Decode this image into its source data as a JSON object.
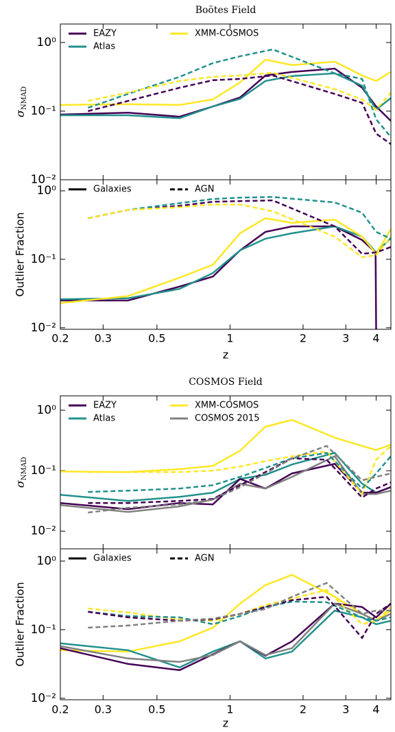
{
  "chart_data": [
    {
      "type": "line",
      "title": "Boötes Field",
      "ylabel": "σ",
      "ylabel_sub": "NMAD",
      "xscale": "log",
      "yscale": "log",
      "xlim": [
        0.2,
        4.6
      ],
      "ylim": [
        0.01,
        1.86
      ],
      "xticks": [
        0.2,
        0.3,
        0.5,
        1,
        2,
        3,
        4
      ],
      "xticklabels": false,
      "yticks": [
        {
          "value": 1,
          "label": "10⁰"
        },
        {
          "value": 0.1,
          "label": "10⁻¹"
        },
        {
          "value": 0.01,
          "label": "10⁻²"
        }
      ],
      "legend": {
        "loc": "upper left",
        "ncol": 2,
        "entries": [
          {
            "label": "EAZY",
            "color": "#440154",
            "linestyle": "solid"
          },
          {
            "label": "Atlas",
            "color": "#21918c",
            "linestyle": "solid"
          },
          {
            "label": "XMM-COSMOS",
            "color": "#fde725",
            "linestyle": "solid"
          }
        ]
      },
      "series": [
        {
          "color": "#440154",
          "linestyle": "solid",
          "x": [
            0.2,
            0.38,
            0.62,
            0.85,
            1.1,
            1.4,
            1.8,
            2.7,
            3.5,
            4.0,
            4.6
          ],
          "values": [
            0.089,
            0.095,
            0.083,
            0.117,
            0.158,
            0.331,
            0.372,
            0.417,
            0.219,
            0.117,
            0.072
          ]
        },
        {
          "color": "#21918c",
          "linestyle": "solid",
          "x": [
            0.2,
            0.38,
            0.62,
            0.85,
            1.1,
            1.4,
            1.8,
            2.7,
            3.5,
            4.0,
            4.6
          ],
          "values": [
            0.087,
            0.087,
            0.079,
            0.117,
            0.151,
            0.275,
            0.324,
            0.355,
            0.234,
            0.105,
            0.155
          ]
        },
        {
          "color": "#fde725",
          "linestyle": "solid",
          "x": [
            0.2,
            0.38,
            0.62,
            0.85,
            1.1,
            1.4,
            1.8,
            2.7,
            3.5,
            4.0,
            4.6
          ],
          "values": [
            0.123,
            0.126,
            0.123,
            0.148,
            0.263,
            0.562,
            0.468,
            0.525,
            0.331,
            0.275,
            0.372
          ]
        },
        {
          "color": "#440154",
          "linestyle": "dashed",
          "x": [
            0.26,
            0.38,
            0.62,
            0.85,
            1.1,
            1.5,
            2.7,
            3.5,
            4.0,
            4.6
          ],
          "values": [
            0.1,
            0.141,
            0.219,
            0.282,
            0.295,
            0.331,
            0.178,
            0.132,
            0.047,
            0.033
          ]
        },
        {
          "color": "#21918c",
          "linestyle": "dashed",
          "x": [
            0.26,
            0.38,
            0.62,
            0.85,
            1.1,
            1.5,
            2.7,
            3.5,
            4.0,
            4.6
          ],
          "values": [
            0.112,
            0.178,
            0.316,
            0.501,
            0.631,
            0.794,
            0.355,
            0.295,
            0.076,
            0.042
          ]
        },
        {
          "color": "#fde725",
          "linestyle": "dashed",
          "x": [
            0.26,
            0.38,
            0.62,
            0.85,
            1.1,
            1.5,
            2.7,
            3.5,
            4.0,
            4.6
          ],
          "values": [
            0.141,
            0.186,
            0.275,
            0.316,
            0.331,
            0.363,
            0.209,
            0.148,
            0.105,
            0.186
          ]
        }
      ]
    },
    {
      "type": "line",
      "ylabel": "Outlier Fraction",
      "xlabel": "z",
      "xscale": "log",
      "yscale": "log",
      "xlim": [
        0.2,
        4.6
      ],
      "ylim": [
        0.0095,
        1.45
      ],
      "xticks": [
        0.2,
        0.3,
        0.5,
        1,
        2,
        3,
        4
      ],
      "xticklabels": true,
      "yticks": [
        {
          "value": 1,
          "label": "10⁰"
        },
        {
          "value": 0.1,
          "label": "10⁻¹"
        },
        {
          "value": 0.01,
          "label": "10⁻²"
        }
      ],
      "legend": {
        "loc": "upper left",
        "ncol": 2,
        "entries": [
          {
            "label": "Galaxies",
            "color": "#000000",
            "linestyle": "solid"
          },
          {
            "label": "AGN",
            "color": "#000000",
            "linestyle": "dashed"
          }
        ]
      },
      "series": [
        {
          "color": "#440154",
          "linestyle": "solid",
          "x": [
            0.2,
            0.38,
            0.62,
            0.85,
            1.1,
            1.4,
            1.8,
            2.7,
            3.5,
            3.98,
            4.0
          ],
          "values": [
            0.025,
            0.025,
            0.04,
            0.056,
            0.135,
            0.251,
            0.302,
            0.302,
            0.191,
            0.126,
            0.0095
          ]
        },
        {
          "color": "#21918c",
          "linestyle": "solid",
          "x": [
            0.2,
            0.38,
            0.62,
            0.85,
            1.1,
            1.4,
            1.8,
            2.7,
            3.5,
            4.0,
            4.6
          ],
          "values": [
            0.026,
            0.027,
            0.037,
            0.063,
            0.135,
            0.2,
            0.24,
            0.302,
            0.214,
            0.126,
            0.204
          ]
        },
        {
          "color": "#fde725",
          "linestyle": "solid",
          "x": [
            0.2,
            0.38,
            0.62,
            0.85,
            1.1,
            1.4,
            1.8,
            2.7,
            3.5,
            4.0,
            4.6
          ],
          "values": [
            0.023,
            0.029,
            0.054,
            0.083,
            0.24,
            0.398,
            0.339,
            0.38,
            0.214,
            0.12,
            0.275
          ]
        },
        {
          "color": "#440154",
          "linestyle": "dashed",
          "x": [
            0.26,
            0.38,
            0.62,
            0.85,
            1.1,
            1.5,
            2.7,
            3.5,
            4.0,
            4.6
          ],
          "values": [
            0.398,
            0.525,
            0.603,
            0.692,
            0.708,
            0.724,
            0.302,
            0.12,
            0.126,
            0.151
          ]
        },
        {
          "color": "#21918c",
          "linestyle": "dashed",
          "x": [
            0.26,
            0.38,
            0.62,
            0.85,
            1.1,
            1.5,
            2.7,
            3.5,
            4.0,
            4.6
          ],
          "values": [
            0.398,
            0.525,
            0.661,
            0.759,
            0.794,
            0.813,
            0.676,
            0.479,
            0.251,
            0.2
          ]
        },
        {
          "color": "#fde725",
          "linestyle": "dashed",
          "x": [
            0.26,
            0.38,
            0.62,
            0.85,
            1.1,
            1.5,
            2.7,
            3.5,
            4.0,
            4.6
          ],
          "values": [
            0.398,
            0.525,
            0.575,
            0.631,
            0.631,
            0.501,
            0.214,
            0.107,
            0.115,
            0.214
          ]
        }
      ]
    },
    {
      "type": "line",
      "title": "COSMOS Field",
      "ylabel": "σ",
      "ylabel_sub": "NMAD",
      "xscale": "log",
      "yscale": "log",
      "xlim": [
        0.2,
        4.6
      ],
      "ylim": [
        0.0051,
        1.73
      ],
      "xticks": [
        0.2,
        0.3,
        0.5,
        1,
        2,
        3,
        4
      ],
      "xticklabels": false,
      "yticks": [
        {
          "value": 1,
          "label": "10⁰"
        },
        {
          "value": 0.1,
          "label": "10⁻¹"
        },
        {
          "value": 0.01,
          "label": "10⁻²"
        }
      ],
      "legend": {
        "loc": "upper left",
        "ncol": 2,
        "entries": [
          {
            "label": "EAZY",
            "color": "#440154",
            "linestyle": "solid"
          },
          {
            "label": "Atlas",
            "color": "#21918c",
            "linestyle": "solid"
          },
          {
            "label": "XMM-COSMOS",
            "color": "#fde725",
            "linestyle": "solid"
          },
          {
            "label": "COSMOS 2015",
            "color": "#808080",
            "linestyle": "solid"
          }
        ]
      },
      "series": [
        {
          "color": "#fde725",
          "linestyle": "solid",
          "x": [
            0.2,
            0.38,
            0.62,
            0.85,
            1.1,
            1.4,
            1.8,
            2.7,
            3.5,
            4.0,
            4.6
          ],
          "values": [
            0.097,
            0.095,
            0.106,
            0.12,
            0.214,
            0.534,
            0.693,
            0.351,
            0.257,
            0.219,
            0.27
          ]
        },
        {
          "color": "#21918c",
          "linestyle": "solid",
          "x": [
            0.2,
            0.38,
            0.62,
            0.85,
            1.1,
            1.4,
            1.8,
            2.7,
            3.5,
            4.0,
            4.6
          ],
          "values": [
            0.04,
            0.0316,
            0.037,
            0.0433,
            0.073,
            0.0855,
            0.1265,
            0.197,
            0.0608,
            0.0433,
            0.0534
          ]
        },
        {
          "color": "#440154",
          "linestyle": "solid",
          "x": [
            0.2,
            0.38,
            0.62,
            0.85,
            1.1,
            1.4,
            1.8,
            2.7,
            3.5,
            4.0,
            4.6
          ],
          "values": [
            0.0292,
            0.0231,
            0.0292,
            0.0277,
            0.073,
            0.0507,
            0.0901,
            0.13,
            0.0433,
            0.0433,
            0.0534
          ]
        },
        {
          "color": "#808080",
          "linestyle": "solid",
          "x": [
            0.2,
            0.38,
            0.62,
            0.85,
            1.1,
            1.4,
            1.8,
            2.7,
            3.5,
            4.0,
            4.6
          ],
          "values": [
            0.027,
            0.0208,
            0.0257,
            0.0333,
            0.0608,
            0.0507,
            0.0791,
            0.173,
            0.0411,
            0.0411,
            0.0468
          ]
        },
        {
          "color": "#fde725",
          "linestyle": "dashed",
          "x": [
            0.26,
            0.38,
            0.62,
            0.85,
            1.1,
            1.4,
            1.8,
            2.5,
            3.5,
            4.0,
            4.6
          ],
          "values": [
            0.095,
            0.095,
            0.095,
            0.1,
            0.117,
            0.144,
            0.173,
            0.208,
            0.0411,
            0.152,
            0.257
          ]
        },
        {
          "color": "#21918c",
          "linestyle": "dashed",
          "x": [
            0.26,
            0.38,
            0.62,
            0.85,
            1.1,
            1.4,
            1.8,
            2.5,
            3.5,
            4.0,
            4.6
          ],
          "values": [
            0.0445,
            0.0468,
            0.0507,
            0.0577,
            0.0791,
            0.111,
            0.16,
            0.197,
            0.0507,
            0.0901,
            0.173
          ]
        },
        {
          "color": "#440154",
          "linestyle": "dashed",
          "x": [
            0.26,
            0.38,
            0.62,
            0.85,
            1.1,
            1.4,
            1.8,
            2.5,
            3.5,
            4.0,
            4.6
          ],
          "values": [
            0.0292,
            0.0292,
            0.0316,
            0.0342,
            0.0577,
            0.095,
            0.16,
            0.152,
            0.036,
            0.0507,
            0.0641
          ]
        },
        {
          "color": "#808080",
          "linestyle": "dashed",
          "x": [
            0.26,
            0.38,
            0.62,
            0.85,
            1.1,
            1.4,
            1.8,
            2.5,
            3.5,
            4.0,
            4.6
          ],
          "values": [
            0.0203,
            0.0243,
            0.0277,
            0.0333,
            0.0534,
            0.0901,
            0.16,
            0.257,
            0.0693,
            0.0791,
            0.0901
          ]
        }
      ]
    },
    {
      "type": "line",
      "ylabel": "Outlier Fraction",
      "xlabel": "z",
      "xscale": "log",
      "yscale": "log",
      "xlim": [
        0.2,
        4.6
      ],
      "ylim": [
        0.0095,
        1.51
      ],
      "xticks": [
        0.2,
        0.3,
        0.5,
        1,
        2,
        3,
        4
      ],
      "xticklabels": true,
      "yticks": [
        {
          "value": 1,
          "label": "10⁰"
        },
        {
          "value": 0.1,
          "label": "10⁻¹"
        },
        {
          "value": 0.01,
          "label": "10⁻²"
        }
      ],
      "legend": {
        "loc": "upper left",
        "ncol": 2,
        "entries": [
          {
            "label": "Galaxies",
            "color": "#000000",
            "linestyle": "solid"
          },
          {
            "label": "AGN",
            "color": "#000000",
            "linestyle": "dashed"
          }
        ]
      },
      "series": [
        {
          "color": "#fde725",
          "linestyle": "solid",
          "x": [
            0.2,
            0.38,
            0.62,
            0.85,
            1.1,
            1.4,
            1.8,
            2.7,
            3.5,
            4.0,
            4.6
          ],
          "values": [
            0.0501,
            0.0479,
            0.0676,
            0.107,
            0.24,
            0.447,
            0.631,
            0.302,
            0.17,
            0.135,
            0.19
          ]
        },
        {
          "color": "#21918c",
          "linestyle": "solid",
          "x": [
            0.2,
            0.38,
            0.62,
            0.85,
            1.1,
            1.4,
            1.8,
            2.7,
            3.5,
            4.0,
            4.6
          ],
          "values": [
            0.0631,
            0.0501,
            0.0282,
            0.0479,
            0.0676,
            0.038,
            0.0479,
            0.19,
            0.151,
            0.12,
            0.135
          ]
        },
        {
          "color": "#440154",
          "linestyle": "solid",
          "x": [
            0.2,
            0.38,
            0.62,
            0.85,
            1.1,
            1.4,
            1.8,
            2.7,
            3.5,
            4.0,
            4.6
          ],
          "values": [
            0.0537,
            0.0316,
            0.0257,
            0.0437,
            0.0676,
            0.0417,
            0.0676,
            0.24,
            0.214,
            0.151,
            0.24
          ]
        },
        {
          "color": "#808080",
          "linestyle": "solid",
          "x": [
            0.2,
            0.38,
            0.62,
            0.85,
            1.1,
            1.4,
            1.8,
            2.7,
            3.5,
            4.0,
            4.6
          ],
          "values": [
            0.0575,
            0.038,
            0.0339,
            0.0427,
            0.0676,
            0.0427,
            0.0537,
            0.24,
            0.17,
            0.135,
            0.17
          ]
        },
        {
          "color": "#fde725",
          "linestyle": "dashed",
          "x": [
            0.26,
            0.38,
            0.62,
            0.85,
            1.1,
            1.4,
            1.8,
            2.5,
            3.5,
            4.0,
            4.6
          ],
          "values": [
            0.204,
            0.178,
            0.141,
            0.135,
            0.17,
            0.229,
            0.282,
            0.38,
            0.12,
            0.135,
            0.214
          ]
        },
        {
          "color": "#21918c",
          "linestyle": "dashed",
          "x": [
            0.26,
            0.38,
            0.62,
            0.85,
            1.1,
            1.4,
            1.8,
            2.5,
            3.5,
            4.0,
            4.6
          ],
          "values": [
            0.182,
            0.158,
            0.151,
            0.12,
            0.158,
            0.214,
            0.257,
            0.251,
            0.151,
            0.135,
            0.151
          ]
        },
        {
          "color": "#440154",
          "linestyle": "dashed",
          "x": [
            0.26,
            0.38,
            0.62,
            0.85,
            1.1,
            1.4,
            1.8,
            2.5,
            3.5,
            4.0,
            4.6
          ],
          "values": [
            0.182,
            0.151,
            0.135,
            0.141,
            0.17,
            0.214,
            0.269,
            0.302,
            0.0759,
            0.17,
            0.24
          ]
        },
        {
          "color": "#808080",
          "linestyle": "dashed",
          "x": [
            0.26,
            0.38,
            0.62,
            0.85,
            1.1,
            1.4,
            1.8,
            2.5,
            3.5,
            4.0,
            4.6
          ],
          "values": [
            0.107,
            0.115,
            0.135,
            0.145,
            0.17,
            0.2,
            0.302,
            0.479,
            0.17,
            0.19,
            0.19
          ]
        }
      ]
    }
  ]
}
